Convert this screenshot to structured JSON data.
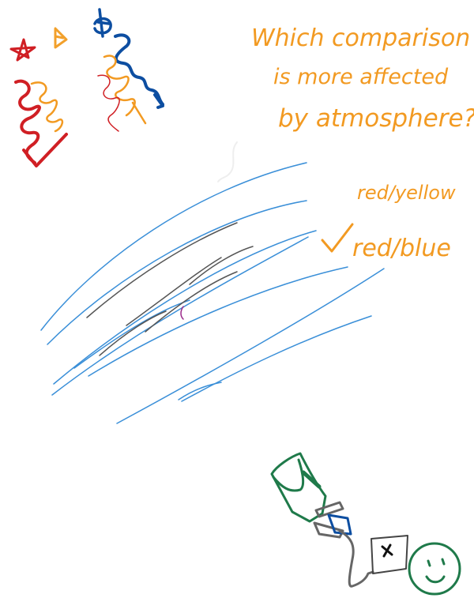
{
  "question": {
    "line1": "Which comparison",
    "line2": "is more affected",
    "line3": "by atmosphere?"
  },
  "options": {
    "option_a": "red/yellow",
    "option_b": "red/blue",
    "selected_mark": "✓"
  },
  "colors": {
    "annotation": "#f29a22",
    "red_star": "#d01f24",
    "yellow_star": "#f2a02b",
    "blue_star": "#0d4ea1",
    "atmosphere_lines": "#3a8fd8",
    "dark_lines": "#555555",
    "telescope": "#1f7a4a",
    "camera": "#444444",
    "face": "#1f7a4a"
  },
  "icons": [
    "red-star-icon",
    "yellow-star-icon",
    "blue-star-icon",
    "telescope-icon",
    "camera-icon",
    "smiley-face-icon",
    "checkmark-icon"
  ]
}
